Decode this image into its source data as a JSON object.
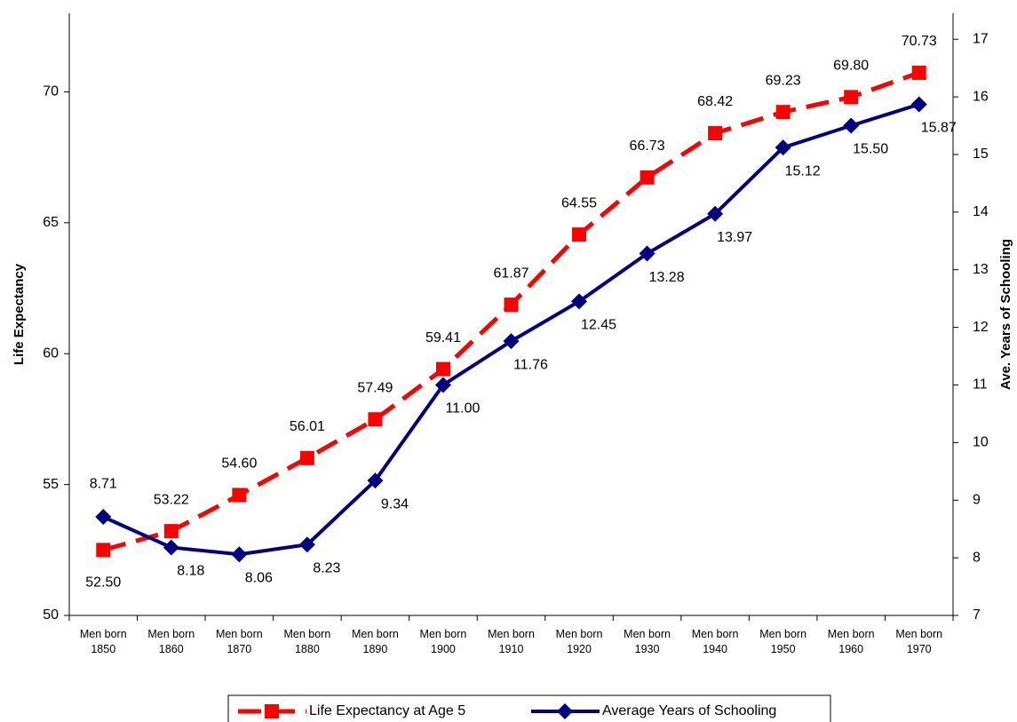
{
  "chart_data": {
    "type": "line",
    "categories": [
      "Men born 1850",
      "Men born 1860",
      "Men born 1870",
      "Men born 1880",
      "Men born 1890",
      "Men born 1900",
      "Men born 1910",
      "Men born 1920",
      "Men born 1930",
      "Men born 1940",
      "Men born 1950",
      "Men born 1960",
      "Men born 1970"
    ],
    "ylabel": "Life Expectancy",
    "y2label": "Ave. Years of Schooling",
    "ylim": [
      50,
      73
    ],
    "yticks": [
      50,
      55,
      60,
      65,
      70
    ],
    "y2lim": [
      7,
      17.45
    ],
    "y2ticks": [
      7,
      8,
      9,
      10,
      11,
      12,
      13,
      14,
      15,
      16,
      17
    ],
    "legend": "bottom",
    "series": [
      {
        "name": "Life Expectancy at Age 5",
        "color": "#ff0000",
        "values": [
          52.5,
          53.22,
          54.6,
          56.01,
          57.49,
          59.41,
          61.87,
          64.55,
          66.73,
          68.42,
          69.23,
          69.8,
          70.73
        ],
        "value_labels": [
          "52.50",
          "53.22",
          "54.60",
          "56.01",
          "57.49",
          "59.41",
          "61.87",
          "64.55",
          "66.73",
          "68.42",
          "69.23",
          "69.80",
          "70.73"
        ]
      },
      {
        "name": "Average Years of Schooling",
        "color": "#000080",
        "axis": "y2",
        "values": [
          8.71,
          8.18,
          8.06,
          8.23,
          9.34,
          11.0,
          11.76,
          12.45,
          13.28,
          13.97,
          15.12,
          15.5,
          15.87
        ],
        "value_labels": [
          "8.71",
          "8.18",
          "8.06",
          "8.23",
          "9.34",
          "11.00",
          "11.76",
          "12.45",
          "13.28",
          "13.97",
          "15.12",
          "15.50",
          "15.87"
        ]
      }
    ]
  }
}
